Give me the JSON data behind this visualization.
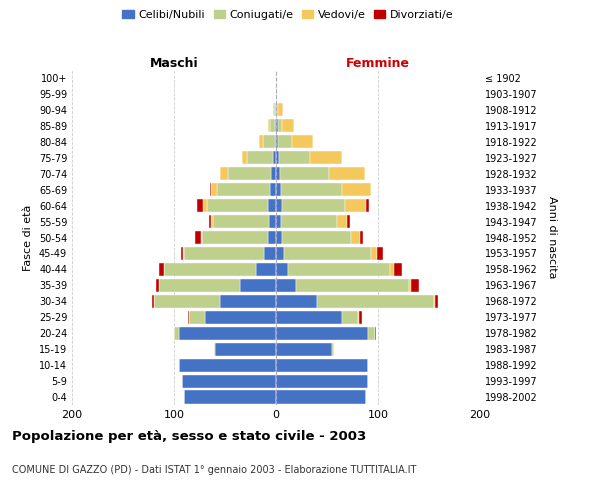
{
  "age_groups": [
    "0-4",
    "5-9",
    "10-14",
    "15-19",
    "20-24",
    "25-29",
    "30-34",
    "35-39",
    "40-44",
    "45-49",
    "50-54",
    "55-59",
    "60-64",
    "65-69",
    "70-74",
    "75-79",
    "80-84",
    "85-89",
    "90-94",
    "95-99",
    "100+"
  ],
  "birth_years": [
    "1998-2002",
    "1993-1997",
    "1988-1992",
    "1983-1987",
    "1978-1982",
    "1973-1977",
    "1968-1972",
    "1963-1967",
    "1958-1962",
    "1953-1957",
    "1948-1952",
    "1943-1947",
    "1938-1942",
    "1933-1937",
    "1928-1932",
    "1923-1927",
    "1918-1922",
    "1913-1917",
    "1908-1912",
    "1903-1907",
    "≤ 1902"
  ],
  "colors": {
    "celibe": "#4472C4",
    "coniugato": "#BFCF8C",
    "vedovo": "#F5C85C",
    "divorziato": "#C00000"
  },
  "maschi": {
    "celibe": [
      90,
      92,
      95,
      60,
      95,
      70,
      55,
      35,
      20,
      12,
      8,
      7,
      8,
      6,
      5,
      3,
      1,
      1,
      0,
      0,
      0
    ],
    "coniugato": [
      0,
      0,
      0,
      1,
      5,
      15,
      65,
      80,
      90,
      78,
      65,
      55,
      60,
      52,
      42,
      25,
      12,
      5,
      2,
      0,
      0
    ],
    "vedovo": [
      0,
      0,
      0,
      0,
      0,
      0,
      0,
      0,
      0,
      1,
      1,
      2,
      4,
      6,
      8,
      5,
      4,
      2,
      1,
      0,
      0
    ],
    "divorziato": [
      0,
      0,
      0,
      0,
      0,
      1,
      2,
      3,
      5,
      2,
      5,
      2,
      5,
      1,
      0,
      0,
      0,
      0,
      0,
      0,
      0
    ]
  },
  "femmine": {
    "nubile": [
      88,
      90,
      90,
      55,
      90,
      65,
      40,
      20,
      12,
      8,
      6,
      5,
      6,
      5,
      4,
      3,
      2,
      2,
      0,
      0,
      0
    ],
    "coniugata": [
      0,
      0,
      0,
      2,
      7,
      15,
      115,
      110,
      100,
      85,
      68,
      55,
      62,
      60,
      48,
      30,
      14,
      4,
      2,
      0,
      0
    ],
    "vedova": [
      0,
      0,
      0,
      0,
      0,
      1,
      1,
      2,
      4,
      6,
      8,
      10,
      20,
      28,
      35,
      32,
      20,
      12,
      5,
      1,
      0
    ],
    "divorziata": [
      0,
      0,
      0,
      0,
      1,
      3,
      3,
      8,
      8,
      6,
      3,
      3,
      3,
      0,
      0,
      0,
      0,
      0,
      0,
      0,
      0
    ]
  },
  "xlim": 200,
  "title": "Popolazione per età, sesso e stato civile - 2003",
  "subtitle": "COMUNE DI GAZZO (PD) - Dati ISTAT 1° gennaio 2003 - Elaborazione TUTTITALIA.IT",
  "ylabel_left": "Fasce di età",
  "ylabel_right": "Anni di nascita",
  "xlabel_left": "Maschi",
  "xlabel_right": "Femmine",
  "background_color": "#ffffff",
  "grid_color": "#cccccc"
}
